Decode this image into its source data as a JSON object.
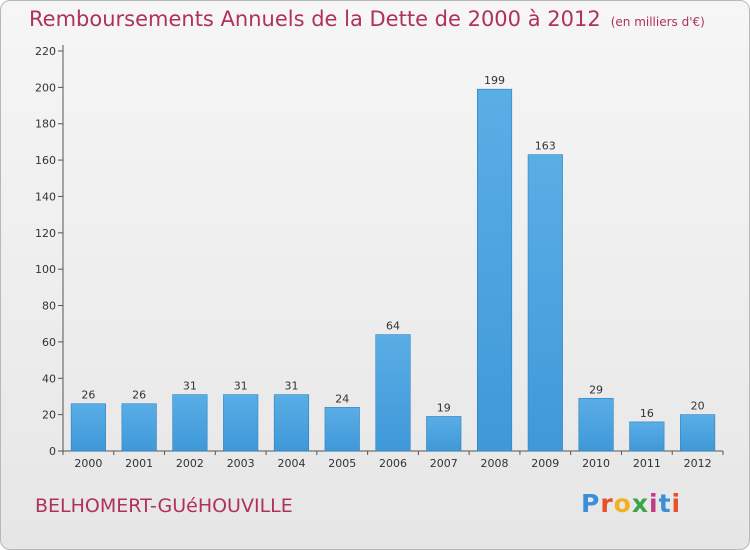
{
  "title": "Remboursements Annuels de la Dette de 2000 à 2012",
  "unit_note": "(en milliers d'€)",
  "commune": "BELHOMERT-GUéHOUVILLE",
  "logo": {
    "text": "Proxiti",
    "letter_colors": [
      "#3a8fd8",
      "#e8502a",
      "#f0b020",
      "#3aa545",
      "#c23a8a",
      "#3a8fd8",
      "#e8502a"
    ]
  },
  "colors": {
    "bar": "#3f98d8",
    "bar_top": "#5aaee6",
    "title": "#b0305f"
  },
  "chart_data": {
    "type": "bar",
    "title": "Remboursements Annuels de la Dette de 2000 à 2012",
    "xlabel": "",
    "ylabel": "",
    "categories": [
      "2000",
      "2001",
      "2002",
      "2003",
      "2004",
      "2005",
      "2006",
      "2007",
      "2008",
      "2009",
      "2010",
      "2011",
      "2012"
    ],
    "values": [
      26,
      26,
      31,
      31,
      31,
      24,
      64,
      19,
      199,
      163,
      29,
      16,
      20
    ],
    "ylim": [
      0,
      220
    ],
    "yticks": [
      0,
      20,
      40,
      60,
      80,
      100,
      120,
      140,
      160,
      180,
      200,
      220
    ],
    "grid": false,
    "data_labels": true
  }
}
